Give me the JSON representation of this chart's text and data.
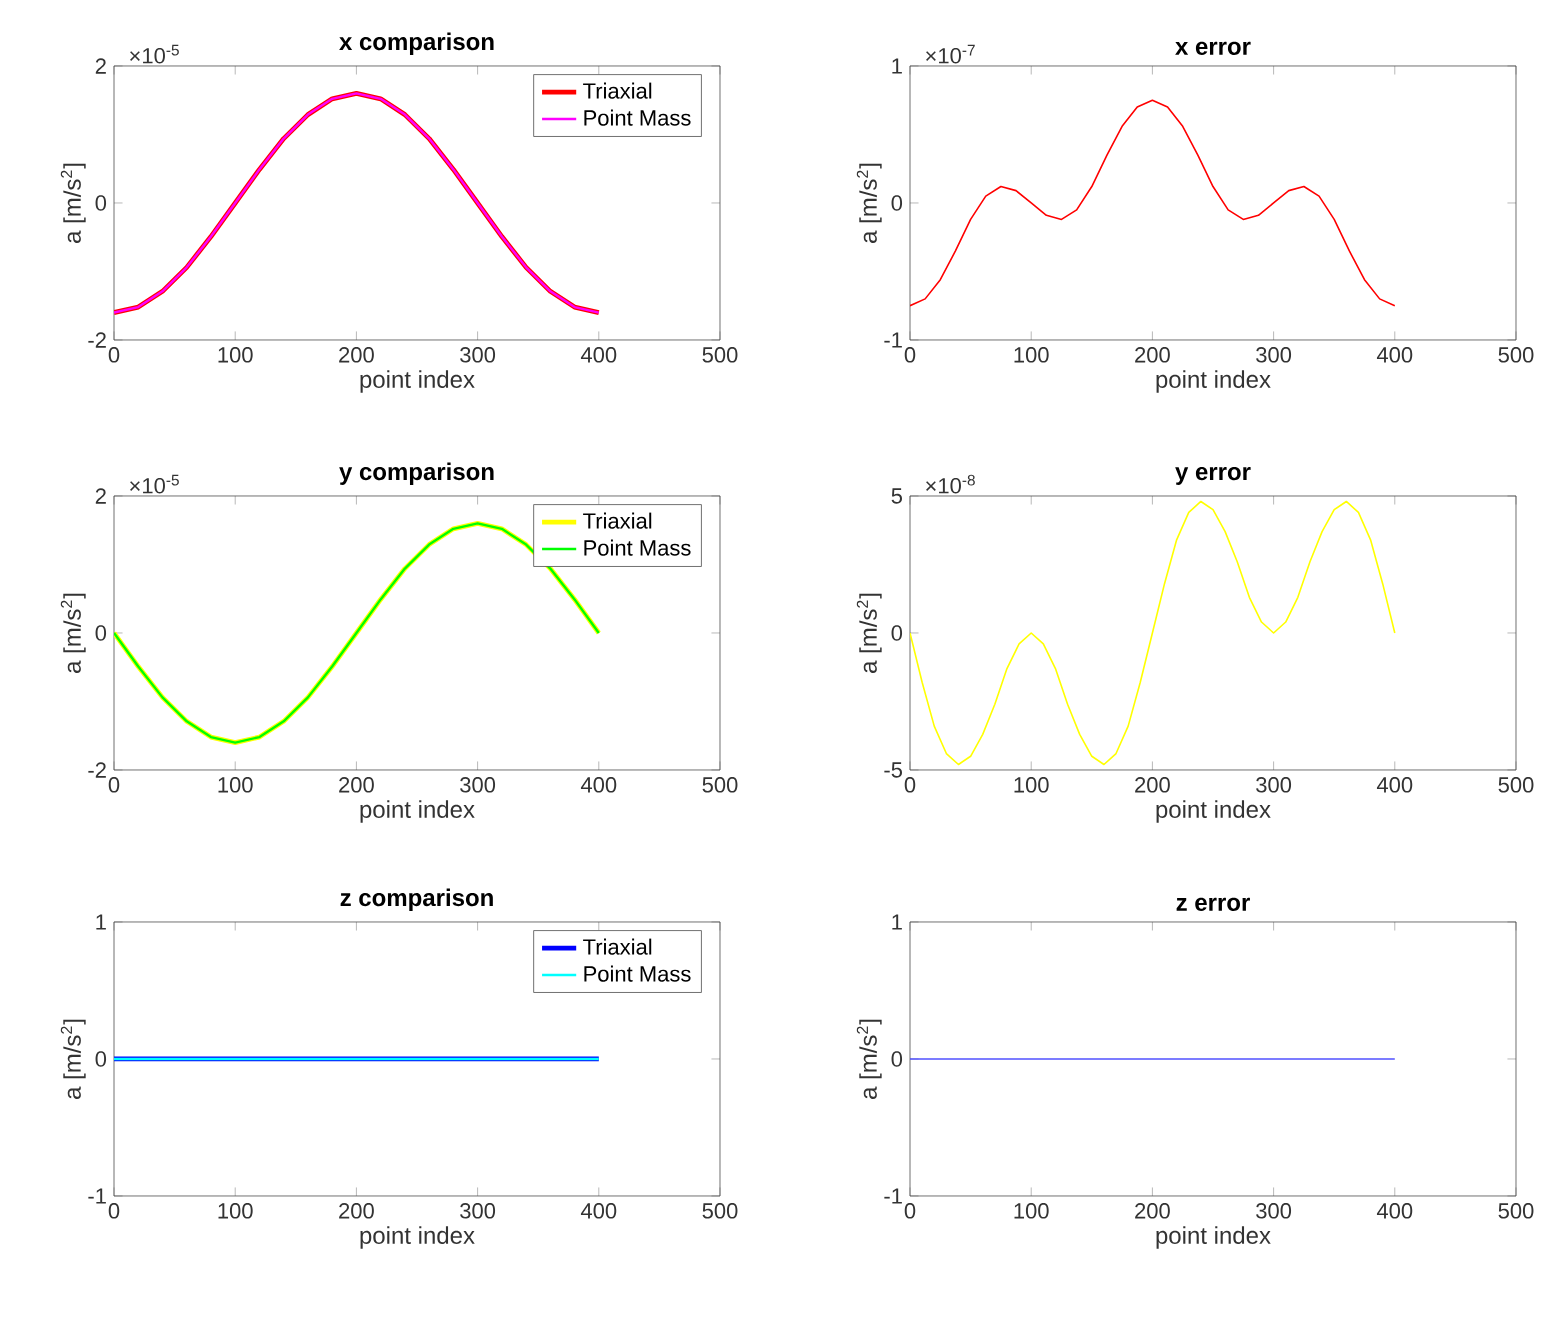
{
  "chart_data": [
    {
      "type": "line",
      "title": "x comparison",
      "xlabel": "point index",
      "ylabel": "a [m/s$^{2}$]",
      "annotations": [
        "×10$^{-5}$"
      ],
      "xlim": [
        0,
        500
      ],
      "ylim": [
        -2,
        2
      ],
      "xticks": [
        0,
        100,
        200,
        300,
        400,
        500
      ],
      "yticks": [
        -2,
        0,
        2
      ],
      "legend": "top right",
      "series": [
        {
          "name": "Triaxial",
          "color": "#ff0000",
          "x": [
            0,
            20,
            40,
            60,
            80,
            100,
            120,
            140,
            160,
            180,
            200,
            220,
            240,
            260,
            280,
            300,
            320,
            340,
            360,
            380,
            400
          ],
          "values": [
            -1.6,
            -1.52,
            -1.29,
            -0.94,
            -0.49,
            0,
            0.49,
            0.94,
            1.29,
            1.52,
            1.6,
            1.52,
            1.29,
            0.94,
            0.49,
            0,
            -0.49,
            -0.94,
            -1.29,
            -1.52,
            -1.6
          ]
        },
        {
          "name": "Point Mass",
          "color": "#ff00ff",
          "x": [
            0,
            20,
            40,
            60,
            80,
            100,
            120,
            140,
            160,
            180,
            200,
            220,
            240,
            260,
            280,
            300,
            320,
            340,
            360,
            380,
            400
          ],
          "values": [
            -1.6,
            -1.52,
            -1.29,
            -0.94,
            -0.49,
            0,
            0.49,
            0.94,
            1.29,
            1.52,
            1.6,
            1.52,
            1.29,
            0.94,
            0.49,
            0,
            -0.49,
            -0.94,
            -1.29,
            -1.52,
            -1.6
          ]
        }
      ]
    },
    {
      "type": "line",
      "title": "x error",
      "xlabel": "point index",
      "ylabel": "a [m/s$^{2}$]",
      "annotations": [
        "×10$^{-7}$"
      ],
      "xlim": [
        0,
        500
      ],
      "ylim": [
        -1,
        1
      ],
      "xticks": [
        0,
        100,
        200,
        300,
        400,
        500
      ],
      "yticks": [
        -1,
        0,
        1
      ],
      "series": [
        {
          "color": "#ff0000",
          "x": [
            0,
            12.5,
            25,
            37.5,
            50,
            62.5,
            75,
            87.5,
            100,
            112.5,
            125,
            137.5,
            150,
            162.5,
            175,
            187.5,
            200,
            212.5,
            225,
            237.5,
            250,
            262.5,
            275,
            287.5,
            300,
            312.5,
            325,
            337.5,
            350,
            362.5,
            375,
            387.5,
            400
          ],
          "values": [
            -0.75,
            -0.7,
            -0.56,
            -0.35,
            -0.12,
            0.05,
            0.12,
            0.09,
            0,
            -0.09,
            -0.12,
            -0.05,
            0.12,
            0.35,
            0.56,
            0.7,
            0.75,
            0.7,
            0.56,
            0.35,
            0.12,
            -0.05,
            -0.12,
            -0.09,
            0,
            0.09,
            0.12,
            0.05,
            -0.12,
            -0.35,
            -0.56,
            -0.7,
            -0.75
          ]
        }
      ]
    },
    {
      "type": "line",
      "title": "y comparison",
      "xlabel": "point index",
      "ylabel": "a [m/s$^{2}$]",
      "annotations": [
        "×10$^{-5}$"
      ],
      "xlim": [
        0,
        500
      ],
      "ylim": [
        -2,
        2
      ],
      "xticks": [
        0,
        100,
        200,
        300,
        400,
        500
      ],
      "yticks": [
        -2,
        0,
        2
      ],
      "legend": "top right",
      "series": [
        {
          "name": "Triaxial",
          "color": "#ffff00",
          "x": [
            0,
            20,
            40,
            60,
            80,
            100,
            120,
            140,
            160,
            180,
            200,
            220,
            240,
            260,
            280,
            300,
            320,
            340,
            360,
            380,
            400
          ],
          "values": [
            0,
            -0.49,
            -0.94,
            -1.29,
            -1.52,
            -1.6,
            -1.52,
            -1.29,
            -0.94,
            -0.49,
            0,
            0.49,
            0.94,
            1.29,
            1.52,
            1.6,
            1.52,
            1.29,
            0.94,
            0.49,
            0
          ]
        },
        {
          "name": "Point Mass",
          "color": "#00ff00",
          "x": [
            0,
            20,
            40,
            60,
            80,
            100,
            120,
            140,
            160,
            180,
            200,
            220,
            240,
            260,
            280,
            300,
            320,
            340,
            360,
            380,
            400
          ],
          "values": [
            0,
            -0.49,
            -0.94,
            -1.29,
            -1.52,
            -1.6,
            -1.52,
            -1.29,
            -0.94,
            -0.49,
            0,
            0.49,
            0.94,
            1.29,
            1.52,
            1.6,
            1.52,
            1.29,
            0.94,
            0.49,
            0
          ]
        }
      ]
    },
    {
      "type": "line",
      "title": "y error",
      "xlabel": "point index",
      "ylabel": "a [m/s$^{2}$]",
      "annotations": [
        "×10$^{-8}$"
      ],
      "xlim": [
        0,
        500
      ],
      "ylim": [
        -5,
        5
      ],
      "xticks": [
        0,
        100,
        200,
        300,
        400,
        500
      ],
      "yticks": [
        -5,
        0,
        5
      ],
      "series": [
        {
          "color": "#ffff00",
          "x": [
            0,
            10,
            20,
            30,
            40,
            50,
            60,
            70,
            80,
            90,
            100,
            110,
            120,
            130,
            140,
            150,
            160,
            170,
            180,
            190,
            200,
            210,
            220,
            230,
            240,
            250,
            260,
            270,
            280,
            290,
            300,
            310,
            320,
            330,
            340,
            350,
            360,
            370,
            380,
            390,
            400
          ],
          "values": [
            0,
            -1.8,
            -3.4,
            -4.4,
            -4.8,
            -4.5,
            -3.7,
            -2.6,
            -1.3,
            -0.4,
            0,
            -0.4,
            -1.3,
            -2.6,
            -3.7,
            -4.5,
            -4.8,
            -4.4,
            -3.4,
            -1.8,
            0,
            1.8,
            3.4,
            4.4,
            4.8,
            4.5,
            3.7,
            2.6,
            1.3,
            0.4,
            0,
            0.4,
            1.3,
            2.6,
            3.7,
            4.5,
            4.8,
            4.4,
            3.4,
            1.8,
            0
          ]
        }
      ]
    },
    {
      "type": "line",
      "title": "z comparison",
      "xlabel": "point index",
      "ylabel": "a [m/s$^{2}$]",
      "xlim": [
        0,
        500
      ],
      "ylim": [
        -1,
        1
      ],
      "xticks": [
        0,
        100,
        200,
        300,
        400,
        500
      ],
      "yticks": [
        -1,
        0,
        1
      ],
      "legend": "top right",
      "series": [
        {
          "name": "Triaxial",
          "color": "#0000ff",
          "x": [
            0,
            400
          ],
          "values": [
            0,
            0
          ]
        },
        {
          "name": "Point Mass",
          "color": "#00ffff",
          "x": [
            0,
            400
          ],
          "values": [
            0,
            0
          ]
        }
      ]
    },
    {
      "type": "line",
      "title": "z error",
      "xlabel": "point index",
      "ylabel": "a [m/s$^{2}$]",
      "xlim": [
        0,
        500
      ],
      "ylim": [
        -1,
        1
      ],
      "xticks": [
        0,
        100,
        200,
        300,
        400,
        500
      ],
      "yticks": [
        -1,
        0,
        1
      ],
      "series": [
        {
          "color": "#5050ff",
          "x": [
            0,
            400
          ],
          "values": [
            0,
            0
          ]
        }
      ]
    }
  ]
}
